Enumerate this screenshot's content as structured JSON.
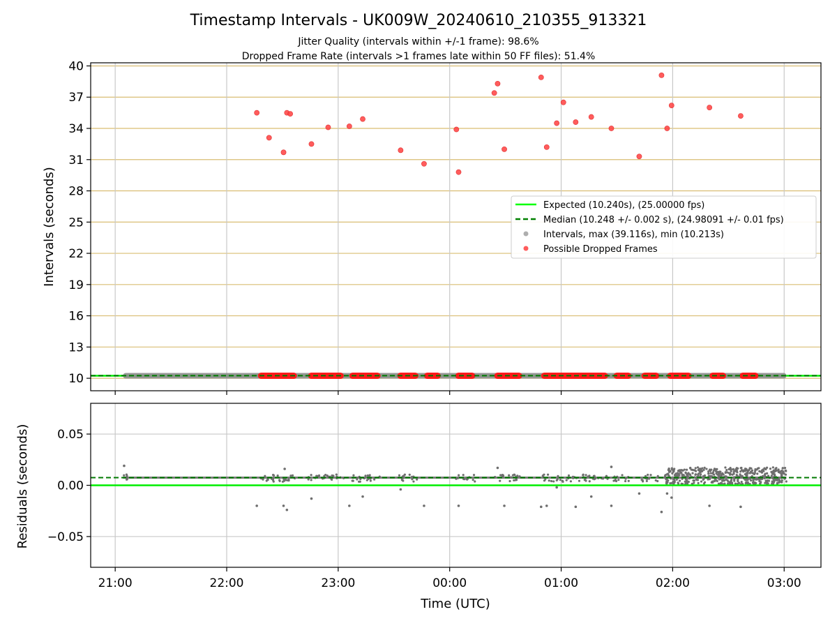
{
  "chart_data": {
    "title": "Timestamp Intervals - UK009W_20240610_210355_913321",
    "subtitle_lines": [
      "Jitter Quality (intervals within +/-1 frame): 98.6%",
      "Dropped Frame Rate (intervals >1 frames late within 50 FF files): 51.4%"
    ],
    "xlabel": "Time (UTC)",
    "x_ticks": [
      "21:00",
      "22:00",
      "23:00",
      "00:00",
      "01:00",
      "02:00",
      "03:00"
    ],
    "x_range_hours": [
      20.78,
      27.33
    ],
    "panels": [
      {
        "type": "scatter",
        "ylabel": "Intervals (seconds)",
        "ylim": [
          8.8,
          40.3
        ],
        "y_ticks": [
          "10",
          "13",
          "16",
          "19",
          "22",
          "25",
          "28",
          "31",
          "34",
          "37",
          "40"
        ],
        "grid": "horizontal gold + vertical gray",
        "legend_position": "center-right",
        "legend": [
          {
            "label": "Expected (10.240s), (25.00000 fps)",
            "kind": "line",
            "color": "#00ff00"
          },
          {
            "label": "Median (10.248 +/- 0.002 s), (24.98091 +/- 0.01 fps)",
            "kind": "dashed",
            "color": "#008000"
          },
          {
            "label": "Intervals, max (39.116s), min (10.213s)",
            "kind": "dot",
            "color": "#a0a0a0"
          },
          {
            "label": "Possible Dropped Frames",
            "kind": "dot",
            "color": "#ff4040"
          }
        ],
        "expected_line": 10.24,
        "median_line": 10.248,
        "intervals_band": {
          "x_start": 21.07,
          "x_end": 27.02,
          "y": 10.24
        },
        "dropped_frames_low_segments": [
          [
            22.28,
            22.63
          ],
          [
            22.73,
            23.05
          ],
          [
            23.1,
            23.38
          ],
          [
            23.53,
            23.72
          ],
          [
            23.77,
            23.92
          ],
          [
            24.05,
            24.23
          ],
          [
            24.4,
            24.65
          ],
          [
            24.82,
            25.42
          ],
          [
            25.47,
            25.63
          ],
          [
            25.72,
            25.88
          ],
          [
            25.95,
            26.17
          ],
          [
            26.33,
            26.48
          ],
          [
            26.6,
            26.77
          ]
        ],
        "dropped_frames_high": [
          [
            22.27,
            35.5
          ],
          [
            22.38,
            33.1
          ],
          [
            22.51,
            31.7
          ],
          [
            22.54,
            35.5
          ],
          [
            22.57,
            35.4
          ],
          [
            22.76,
            32.5
          ],
          [
            22.91,
            34.1
          ],
          [
            23.1,
            34.2
          ],
          [
            23.22,
            34.9
          ],
          [
            23.56,
            31.9
          ],
          [
            23.77,
            30.6
          ],
          [
            24.06,
            33.9
          ],
          [
            24.08,
            29.8
          ],
          [
            24.4,
            37.4
          ],
          [
            24.43,
            38.3
          ],
          [
            24.49,
            32.0
          ],
          [
            24.82,
            38.9
          ],
          [
            24.87,
            32.2
          ],
          [
            24.96,
            34.5
          ],
          [
            25.02,
            36.5
          ],
          [
            25.13,
            34.6
          ],
          [
            25.27,
            35.1
          ],
          [
            25.45,
            34.0
          ],
          [
            25.7,
            31.3
          ],
          [
            25.9,
            39.1
          ],
          [
            25.95,
            34.0
          ],
          [
            25.99,
            36.2
          ],
          [
            26.33,
            36.0
          ],
          [
            26.61,
            35.2
          ]
        ]
      },
      {
        "type": "scatter",
        "ylabel": "Residuals (seconds)",
        "ylim": [
          -0.08,
          0.08
        ],
        "y_ticks": [
          "−0.05",
          "0.00",
          "0.05"
        ],
        "grid": "both gray",
        "expected_line": 0.0,
        "median_line": 0.0075,
        "residual_clusters": [
          [
            21.07,
            21.12
          ],
          [
            22.27,
            22.62
          ],
          [
            22.73,
            23.05
          ],
          [
            23.1,
            23.38
          ],
          [
            23.53,
            23.72
          ],
          [
            24.05,
            24.23
          ],
          [
            24.4,
            24.65
          ],
          [
            24.82,
            25.42
          ],
          [
            25.47,
            25.63
          ],
          [
            25.72,
            25.88
          ]
        ],
        "residual_dense_range": [
          25.93,
          27.02
        ],
        "residual_outliers": [
          [
            21.08,
            0.019
          ],
          [
            22.27,
            -0.02
          ],
          [
            22.51,
            -0.02
          ],
          [
            22.54,
            -0.024
          ],
          [
            22.52,
            0.016
          ],
          [
            22.76,
            -0.013
          ],
          [
            23.1,
            -0.02
          ],
          [
            23.22,
            -0.011
          ],
          [
            23.56,
            -0.004
          ],
          [
            23.77,
            -0.02
          ],
          [
            24.08,
            -0.02
          ],
          [
            24.43,
            0.017
          ],
          [
            24.49,
            -0.02
          ],
          [
            24.82,
            -0.021
          ],
          [
            24.87,
            -0.02
          ],
          [
            24.96,
            -0.002
          ],
          [
            25.13,
            -0.021
          ],
          [
            25.27,
            -0.011
          ],
          [
            25.45,
            -0.02
          ],
          [
            25.45,
            0.018
          ],
          [
            25.7,
            -0.008
          ],
          [
            25.9,
            -0.026
          ],
          [
            25.95,
            -0.008
          ],
          [
            25.99,
            -0.012
          ],
          [
            26.33,
            -0.02
          ],
          [
            26.61,
            -0.021
          ]
        ]
      }
    ]
  }
}
